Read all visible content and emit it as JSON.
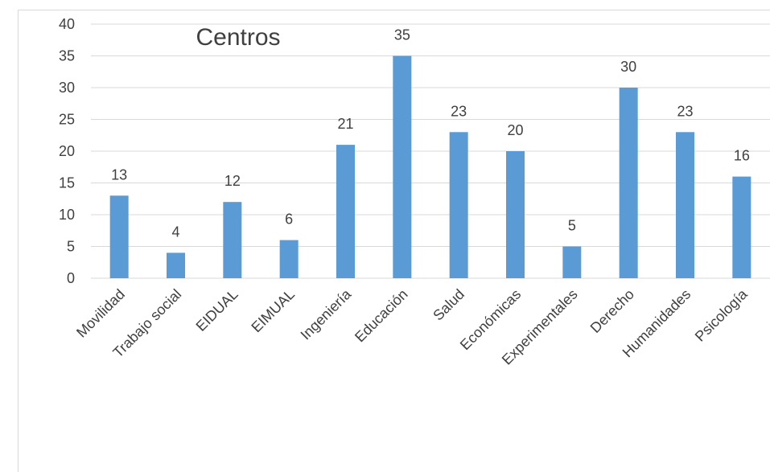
{
  "chart_data": {
    "type": "bar",
    "title": "Centros",
    "categories": [
      "Movilidad",
      "Trabajo social",
      "EIDUAL",
      "EIMUAL",
      "Ingeniería",
      "Educación",
      "Salud",
      "Económicas",
      "Experimentales",
      "Derecho",
      "Humanidades",
      "Psicología"
    ],
    "values": [
      13,
      4,
      12,
      6,
      21,
      35,
      23,
      20,
      5,
      30,
      23,
      16
    ],
    "ylim": [
      0,
      40
    ],
    "yticks": [
      "0",
      "5",
      "10",
      "15",
      "20",
      "25",
      "30",
      "35",
      "40"
    ],
    "grid": true,
    "legend": "none",
    "bar_color": "#5b9bd5",
    "grid_color": "#d9d9d9",
    "text_color": "#404040"
  }
}
